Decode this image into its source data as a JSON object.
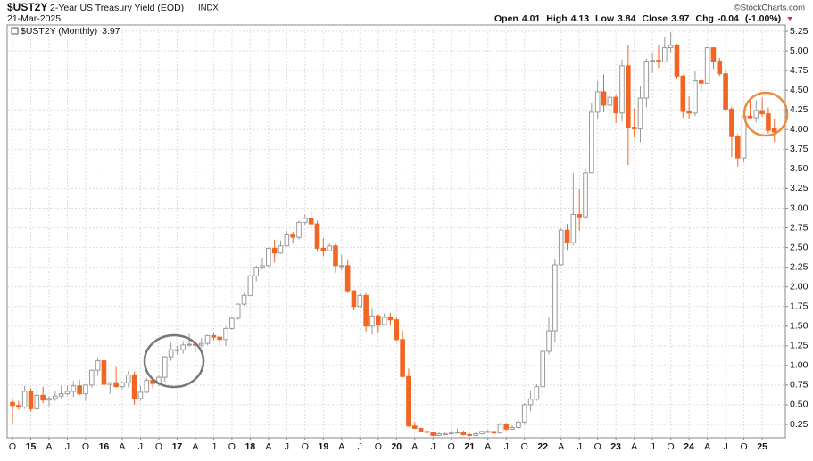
{
  "header": {
    "symbol": "$UST2Y",
    "name": "2-Year US Treasury Yield (EOD)",
    "exchange": "INDX",
    "date": "21-Mar-2025",
    "open_label": "Open",
    "high_label": "High",
    "low_label": "Low",
    "close_label": "Close",
    "chg_label": "Chg",
    "chg": -0.04,
    "chg_pct": "(-1.00%)",
    "copyright": "©StockCharts.com",
    "legend": "$UST2Y (Monthly)"
  },
  "chart_data": {
    "type": "candlestick",
    "up_color": "#999999",
    "down_color": "#f26522",
    "grid": true,
    "ylim": [
      0.08,
      5.33
    ],
    "yticks": [
      0.25,
      {
        "value": 0.5,
        "label": "0.50"
      },
      0.75,
      {
        "value": 1,
        "label": "1.00"
      },
      1.25,
      {
        "value": 1.5,
        "label": "1.50"
      },
      1.75,
      {
        "value": 2,
        "label": "2.00"
      },
      2.25,
      {
        "value": 2.5,
        "label": "2.50"
      },
      2.75,
      {
        "value": 3,
        "label": "3.00"
      },
      3.25,
      {
        "value": 3.5,
        "label": "3.50"
      },
      3.75,
      {
        "value": 4,
        "label": "4.00"
      },
      4.25,
      {
        "value": 4.5,
        "label": "4.50"
      },
      4.75,
      {
        "value": 5,
        "label": "5.00"
      },
      5.25
    ],
    "xticks": [
      {
        "value": 0,
        "label": "O"
      },
      {
        "value": 3,
        "label": "15"
      },
      {
        "value": 6,
        "label": "A"
      },
      {
        "value": 9,
        "label": "J"
      },
      {
        "value": 12,
        "label": "O"
      },
      {
        "value": 15,
        "label": "16"
      },
      {
        "value": 18,
        "label": "A"
      },
      {
        "value": 21,
        "label": "J"
      },
      {
        "value": 24,
        "label": "O"
      },
      {
        "value": 27,
        "label": "17"
      },
      {
        "value": 30,
        "label": "A"
      },
      {
        "value": 33,
        "label": "J"
      },
      {
        "value": 36,
        "label": "O"
      },
      {
        "value": 39,
        "label": "18"
      },
      {
        "value": 42,
        "label": "A"
      },
      {
        "value": 45,
        "label": "J"
      },
      {
        "value": 48,
        "label": "O"
      },
      {
        "value": 51,
        "label": "19"
      },
      {
        "value": 54,
        "label": "A"
      },
      {
        "value": 57,
        "label": "J"
      },
      {
        "value": 60,
        "label": "O"
      },
      {
        "value": 63,
        "label": "20"
      },
      {
        "value": 66,
        "label": "A"
      },
      {
        "value": 69,
        "label": "J"
      },
      {
        "value": 72,
        "label": "O"
      },
      {
        "value": 75,
        "label": "21"
      },
      {
        "value": 78,
        "label": "A"
      },
      {
        "value": 81,
        "label": "J"
      },
      {
        "value": 84,
        "label": "O"
      },
      {
        "value": 87,
        "label": "22"
      },
      {
        "value": 90,
        "label": "A"
      },
      {
        "value": 93,
        "label": "J"
      },
      {
        "value": 96,
        "label": "O"
      },
      {
        "value": 99,
        "label": "23"
      },
      {
        "value": 102,
        "label": "A"
      },
      {
        "value": 105,
        "label": "J"
      },
      {
        "value": 108,
        "label": "O"
      },
      {
        "value": 111,
        "label": "24"
      },
      {
        "value": 114,
        "label": "A"
      },
      {
        "value": 117,
        "label": "J"
      },
      {
        "value": 120,
        "label": "O"
      },
      {
        "value": 123,
        "label": "25"
      }
    ],
    "open": [
      0.53,
      0.49,
      0.47,
      0.67,
      0.45,
      0.62,
      0.56,
      0.58,
      0.61,
      0.64,
      0.67,
      0.74,
      0.64,
      0.75,
      0.94,
      1.06,
      0.76,
      0.78,
      0.73,
      0.78,
      0.88,
      0.58,
      0.66,
      0.81,
      0.77,
      0.85,
      1.11,
      1.2,
      1.2,
      1.26,
      1.27,
      1.26,
      1.28,
      1.38,
      1.36,
      1.33,
      1.47,
      1.6,
      1.78,
      1.89,
      2.14,
      2.25,
      2.27,
      2.49,
      2.43,
      2.52,
      2.67,
      2.63,
      2.82,
      2.87,
      2.8,
      2.49,
      2.46,
      2.52,
      2.27,
      2.27,
      1.95,
      1.75,
      1.89,
      1.5,
      1.63,
      1.52,
      1.61,
      1.58,
      1.33,
      0.86,
      0.23,
      0.2,
      0.16,
      0.15,
      0.11,
      0.13,
      0.13,
      0.14,
      0.15,
      0.12,
      0.11,
      0.13,
      0.16,
      0.16,
      0.14,
      0.25,
      0.19,
      0.21,
      0.28,
      0.5,
      0.57,
      0.73,
      1.18,
      1.44,
      2.28,
      2.72,
      2.56,
      2.92,
      2.89,
      3.45,
      4.22,
      4.48,
      4.31,
      4.41,
      4.21,
      4.81,
      4.03,
      4.01,
      4.4,
      4.87,
      4.88,
      4.86,
      5.04,
      5.07,
      4.68,
      4.23,
      4.21,
      4.62,
      4.59,
      5.04,
      4.87,
      4.71,
      4.26,
      3.91,
      3.64,
      4.17,
      4.15,
      4.24,
      4.2,
      4.01
    ],
    "high": [
      0.58,
      0.55,
      0.74,
      0.71,
      0.73,
      0.73,
      0.61,
      0.68,
      0.74,
      0.74,
      0.8,
      0.82,
      0.76,
      0.95,
      1.1,
      1.08,
      0.79,
      0.98,
      0.8,
      0.93,
      0.92,
      0.74,
      0.84,
      0.83,
      0.88,
      1.12,
      1.3,
      1.25,
      1.31,
      1.4,
      1.3,
      1.35,
      1.39,
      1.42,
      1.38,
      1.49,
      1.62,
      1.79,
      1.92,
      2.15,
      2.27,
      2.37,
      2.5,
      2.6,
      2.59,
      2.71,
      2.7,
      2.84,
      2.92,
      2.97,
      2.84,
      2.62,
      2.55,
      2.55,
      2.41,
      2.34,
      1.95,
      1.91,
      1.92,
      1.73,
      1.65,
      1.66,
      1.67,
      1.61,
      1.45,
      0.96,
      0.28,
      0.2,
      0.22,
      0.16,
      0.16,
      0.15,
      0.17,
      0.2,
      0.17,
      0.14,
      0.15,
      0.17,
      0.18,
      0.17,
      0.27,
      0.27,
      0.24,
      0.31,
      0.52,
      0.67,
      0.76,
      1.2,
      1.62,
      2.35,
      2.74,
      2.8,
      3.45,
      3.24,
      3.5,
      4.34,
      4.62,
      4.7,
      4.48,
      4.45,
      4.89,
      5.08,
      4.27,
      4.56,
      4.9,
      4.98,
      5.08,
      5.18,
      5.24,
      5.09,
      4.7,
      4.42,
      4.74,
      4.66,
      5.05,
      5.04,
      4.91,
      4.77,
      4.29,
      3.94,
      4.17,
      4.37,
      4.37,
      4.41,
      4.28,
      4.13
    ],
    "low": [
      0.25,
      0.44,
      0.45,
      0.42,
      0.43,
      0.52,
      0.48,
      0.55,
      0.58,
      0.62,
      0.6,
      0.62,
      0.55,
      0.72,
      0.87,
      0.74,
      0.64,
      0.72,
      0.7,
      0.72,
      0.5,
      0.55,
      0.65,
      0.71,
      0.74,
      0.79,
      1.06,
      1.14,
      1.15,
      1.24,
      1.17,
      1.23,
      1.26,
      1.32,
      1.26,
      1.25,
      1.45,
      1.58,
      1.76,
      1.89,
      2.07,
      2.22,
      2.26,
      2.31,
      2.42,
      2.52,
      2.55,
      2.6,
      2.79,
      2.76,
      2.45,
      2.39,
      2.45,
      2.18,
      2.21,
      1.92,
      1.7,
      1.74,
      1.43,
      1.39,
      1.41,
      1.52,
      1.52,
      1.31,
      0.85,
      0.22,
      0.19,
      0.15,
      0.14,
      0.1,
      0.1,
      0.12,
      0.13,
      0.14,
      0.11,
      0.1,
      0.1,
      0.12,
      0.15,
      0.14,
      0.14,
      0.17,
      0.18,
      0.2,
      0.26,
      0.42,
      0.55,
      0.73,
      1.14,
      1.29,
      2.27,
      2.47,
      2.53,
      2.71,
      2.86,
      3.45,
      4.13,
      4.22,
      4.16,
      4.08,
      4.1,
      3.55,
      3.9,
      3.84,
      4.28,
      4.72,
      4.78,
      4.85,
      4.98,
      4.64,
      4.15,
      4.14,
      4.17,
      4.49,
      4.59,
      4.77,
      4.68,
      4.24,
      3.65,
      3.53,
      3.58,
      4.13,
      4.09,
      4.16,
      3.95,
      3.84
    ],
    "close": [
      0.49,
      0.47,
      0.67,
      0.45,
      0.62,
      0.56,
      0.58,
      0.61,
      0.64,
      0.67,
      0.74,
      0.64,
      0.75,
      0.94,
      1.06,
      0.76,
      0.78,
      0.73,
      0.78,
      0.88,
      0.58,
      0.66,
      0.81,
      0.77,
      0.85,
      1.11,
      1.2,
      1.2,
      1.26,
      1.27,
      1.26,
      1.28,
      1.38,
      1.36,
      1.33,
      1.47,
      1.6,
      1.78,
      1.89,
      2.14,
      2.25,
      2.27,
      2.49,
      2.43,
      2.52,
      2.67,
      2.63,
      2.82,
      2.87,
      2.8,
      2.49,
      2.46,
      2.52,
      2.27,
      2.27,
      1.95,
      1.75,
      1.89,
      1.5,
      1.63,
      1.52,
      1.61,
      1.58,
      1.33,
      0.86,
      0.23,
      0.2,
      0.16,
      0.15,
      0.11,
      0.13,
      0.13,
      0.14,
      0.15,
      0.12,
      0.11,
      0.13,
      0.16,
      0.16,
      0.14,
      0.25,
      0.19,
      0.21,
      0.28,
      0.5,
      0.57,
      0.73,
      1.18,
      1.44,
      2.28,
      2.72,
      2.56,
      2.92,
      2.89,
      3.45,
      4.22,
      4.48,
      4.31,
      4.41,
      4.21,
      4.81,
      4.03,
      4.01,
      4.4,
      4.87,
      4.88,
      4.86,
      5.04,
      5.07,
      4.68,
      4.23,
      4.21,
      4.62,
      4.59,
      5.04,
      4.87,
      4.71,
      4.26,
      3.91,
      3.64,
      4.17,
      4.15,
      4.24,
      4.2,
      3.99,
      3.97
    ]
  }
}
